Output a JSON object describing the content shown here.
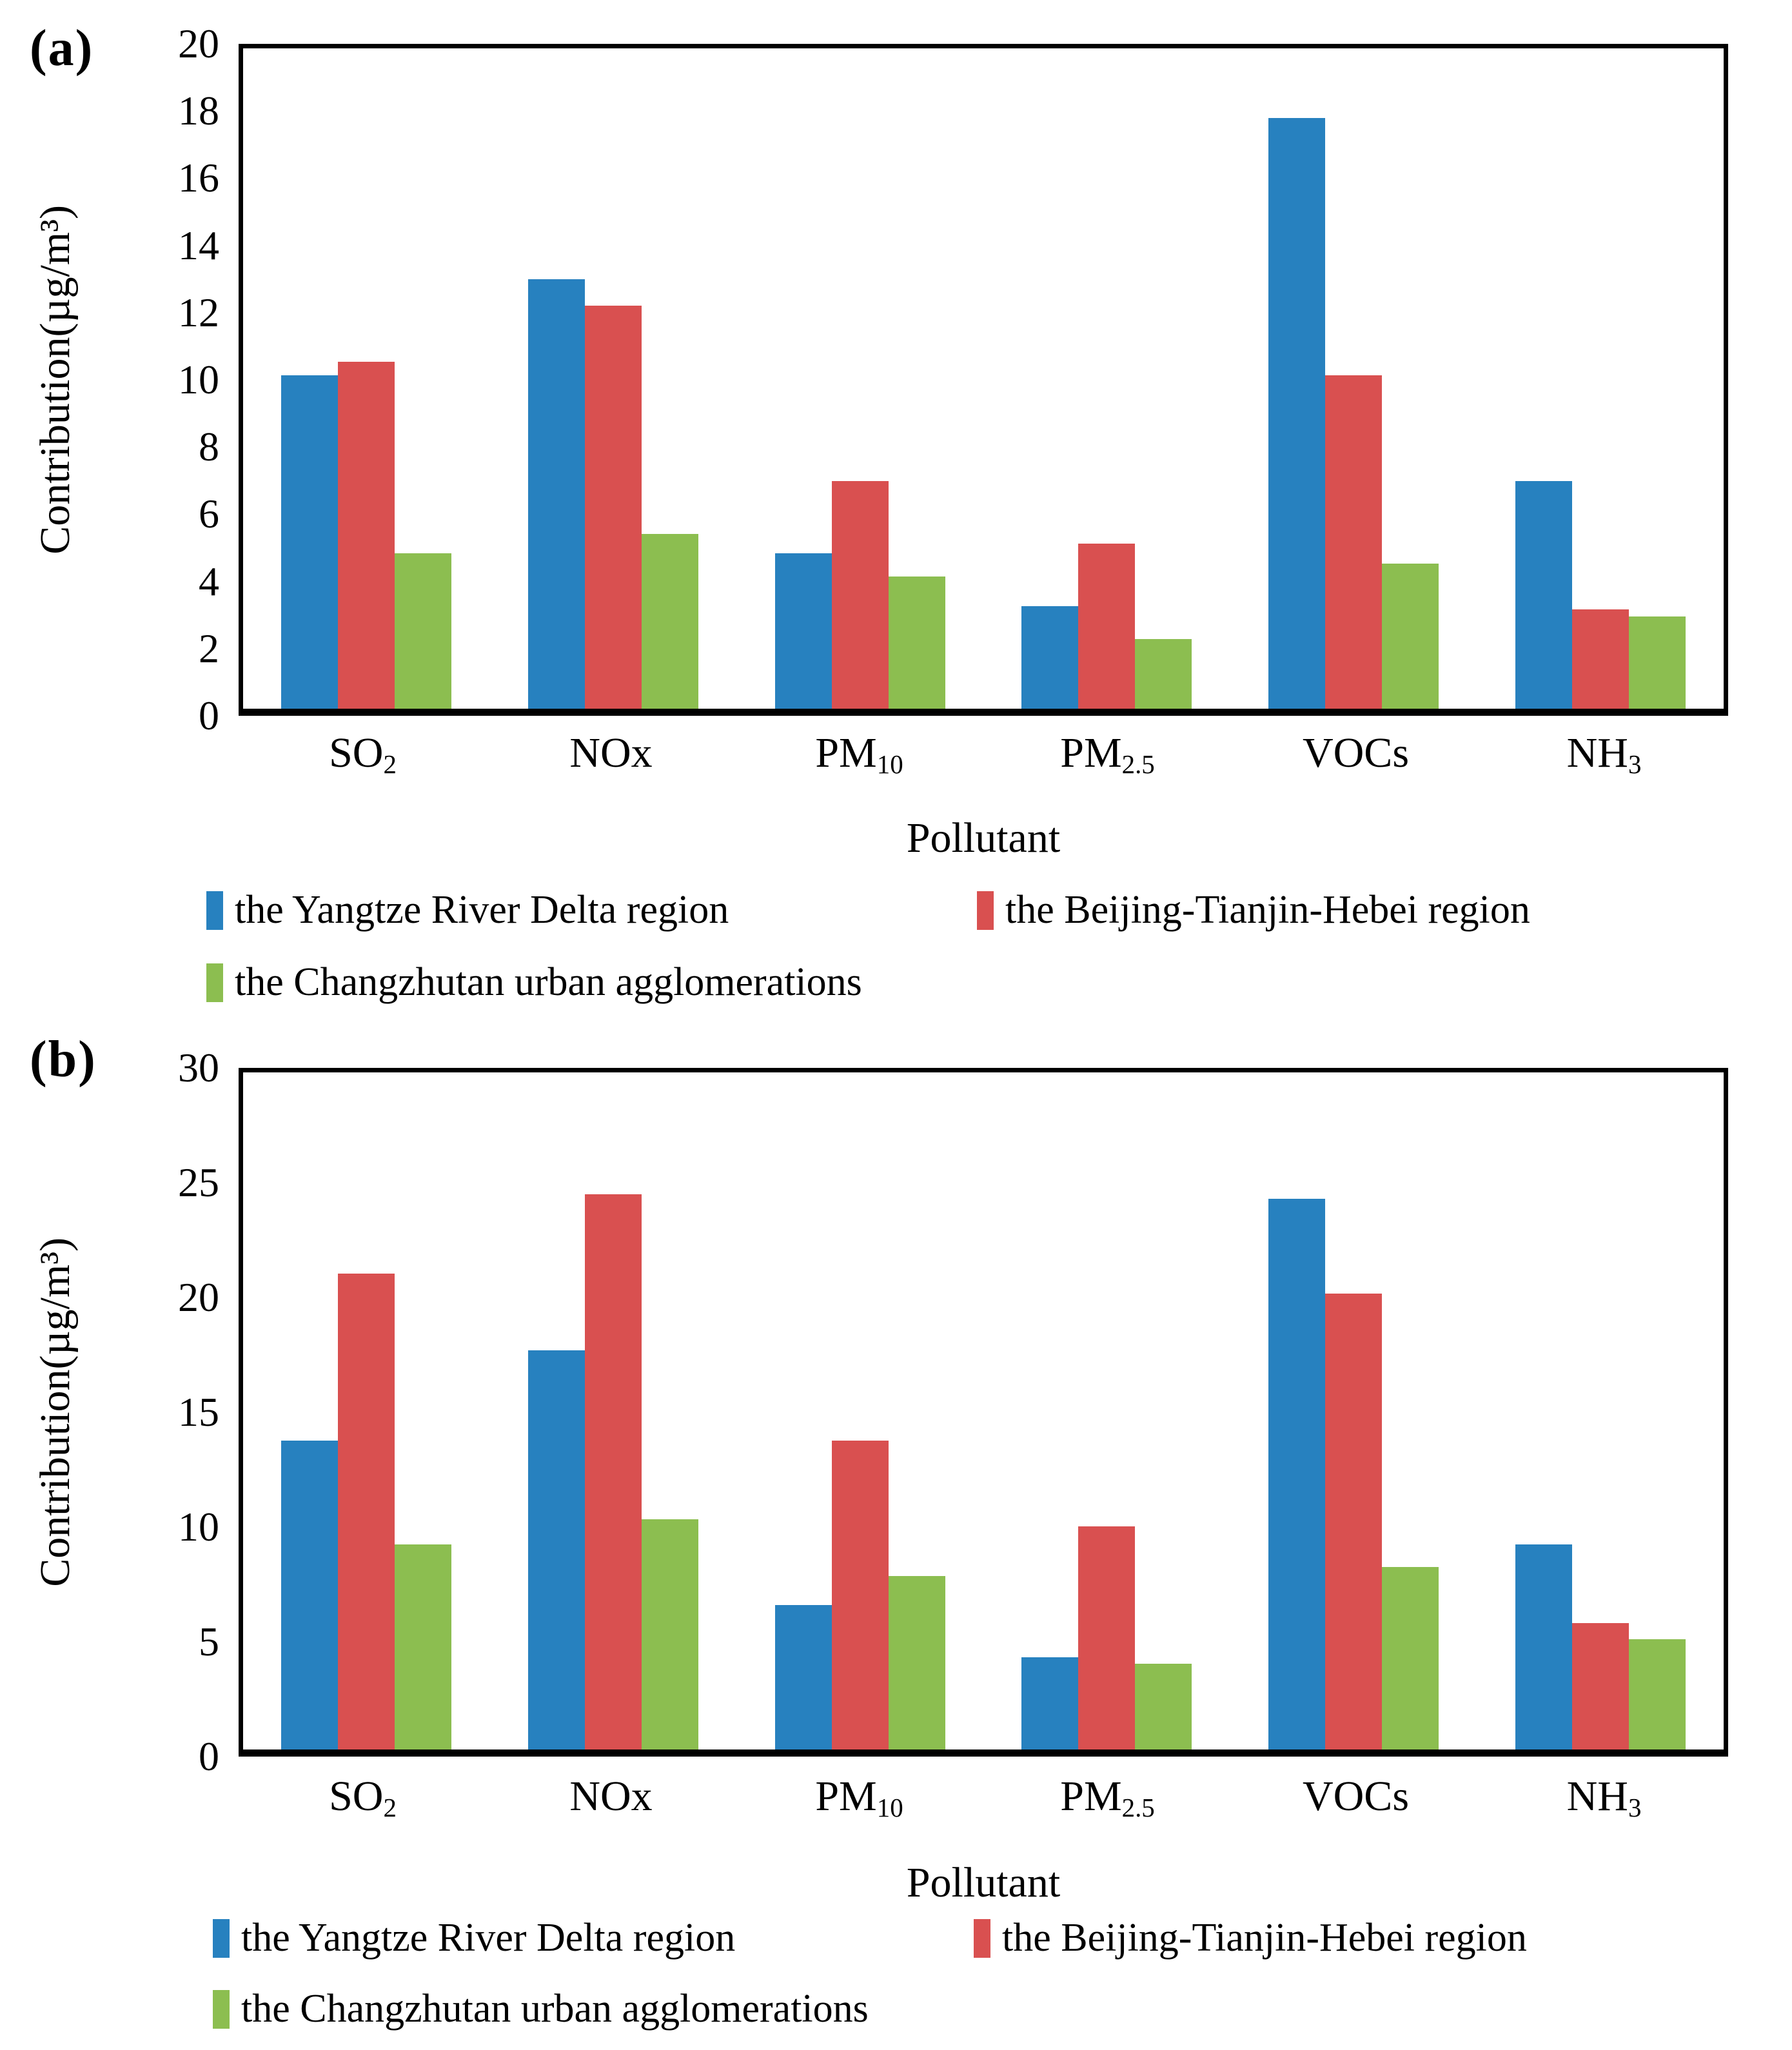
{
  "page": {
    "background": "#ffffff"
  },
  "chart_data": [
    {
      "panel_label": "(a)",
      "type": "bar",
      "title": "",
      "xlabel": "Pollutant",
      "ylabel": "Contribution(µg/m³)",
      "ylim": [
        0,
        20
      ],
      "yticks": [
        0,
        2,
        4,
        6,
        8,
        10,
        12,
        14,
        16,
        18,
        20
      ],
      "grid": false,
      "legend_position": "below",
      "categories": [
        {
          "text": "SO",
          "sub": "2"
        },
        {
          "text": "NOx",
          "sub": ""
        },
        {
          "text": "PM",
          "sub": "10"
        },
        {
          "text": "PM",
          "sub": "2.5"
        },
        {
          "text": "VOCs",
          "sub": ""
        },
        {
          "text": "NH",
          "sub": "3"
        }
      ],
      "series": [
        {
          "name": "the Yangtze River Delta region",
          "color": "#2781BF",
          "values": [
            10.1,
            13.0,
            4.7,
            3.1,
            17.9,
            6.9
          ]
        },
        {
          "name": "the Beijing-Tianjin-Hebei region",
          "color": "#D95050",
          "values": [
            10.5,
            12.2,
            6.9,
            5.0,
            10.1,
            3.0
          ]
        },
        {
          "name": "the Changzhutan urban agglomerations",
          "color": "#8CBE50",
          "values": [
            4.7,
            5.3,
            4.0,
            2.1,
            4.4,
            2.8
          ]
        }
      ]
    },
    {
      "panel_label": "(b)",
      "type": "bar",
      "title": "",
      "xlabel": "Pollutant",
      "ylabel": "Contribution(µg/m³)",
      "ylim": [
        0,
        30
      ],
      "yticks": [
        0,
        5,
        10,
        15,
        20,
        25,
        30
      ],
      "grid": false,
      "legend_position": "below",
      "categories": [
        {
          "text": "SO",
          "sub": "2"
        },
        {
          "text": "NOx",
          "sub": ""
        },
        {
          "text": "PM",
          "sub": "10"
        },
        {
          "text": "PM",
          "sub": "2.5"
        },
        {
          "text": "VOCs",
          "sub": ""
        },
        {
          "text": "NH",
          "sub": "3"
        }
      ],
      "series": [
        {
          "name": "the Yangtze River Delta region",
          "color": "#2781BF",
          "values": [
            13.7,
            17.7,
            6.4,
            4.1,
            24.4,
            9.1
          ]
        },
        {
          "name": "the Beijing-Tianjin-Hebei region",
          "color": "#D95050",
          "values": [
            21.1,
            24.6,
            13.7,
            9.9,
            20.2,
            5.6
          ]
        },
        {
          "name": "the Changzhutan urban agglomerations",
          "color": "#8CBE50",
          "values": [
            9.1,
            10.2,
            7.7,
            3.8,
            8.1,
            4.9
          ]
        }
      ]
    }
  ]
}
